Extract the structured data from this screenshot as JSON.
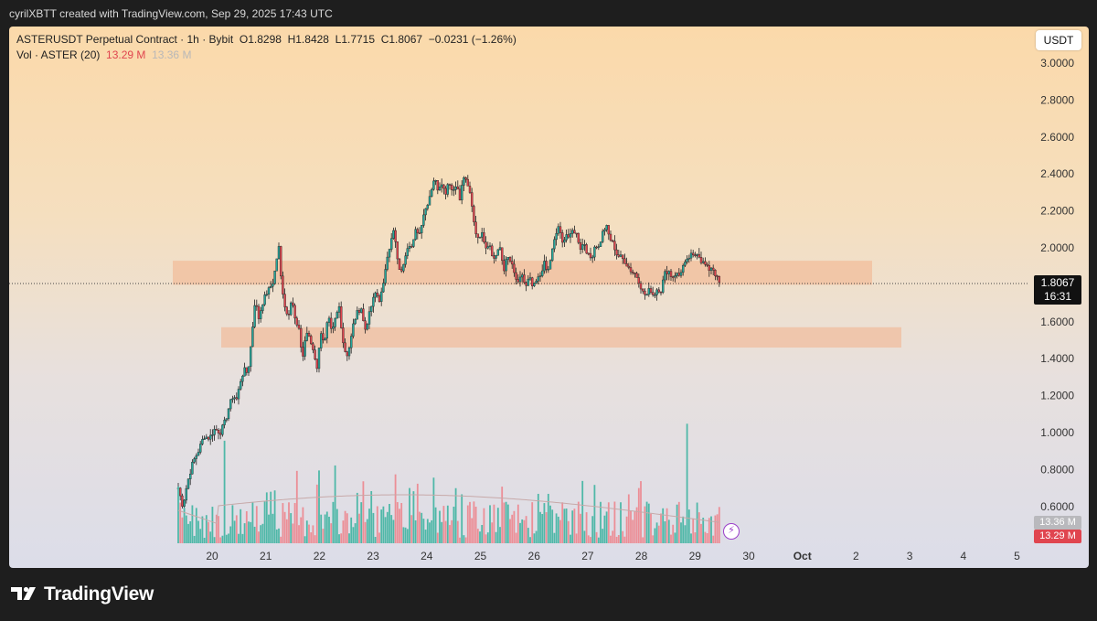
{
  "header": {
    "credit": "cyrilXBTT created with TradingView.com, Sep 29, 2025 17:43 UTC"
  },
  "legend": {
    "symbol": "ASTERUSDT Perpetual Contract · 1h · Bybit",
    "open": "O1.8298",
    "high": "H1.8428",
    "low": "L1.7715",
    "close": "C1.8067",
    "change": "−0.0231 (−1.26%)",
    "volume_label": "Vol · ASTER (20)",
    "volume_current": "13.29 M",
    "volume_ma": "13.36 M"
  },
  "currency_button": "USDT",
  "last_price": {
    "price": "1.8067",
    "countdown": "16:31"
  },
  "volume_tags": {
    "ma": "13.36 M",
    "current": "13.29 M"
  },
  "footer": {
    "brand": "TradingView"
  },
  "colors": {
    "up": "#26a69a",
    "down": "#e0454f",
    "zone": "#f3b08b",
    "vol_up": "#4fb8a8",
    "vol_down": "#ec8e96"
  },
  "chart_data": {
    "type": "candlestick",
    "y_axis": {
      "min": 0.5,
      "max": 3.1,
      "ticks": [
        "3.0000",
        "2.8000",
        "2.6000",
        "2.4000",
        "2.2000",
        "2.0000",
        "1.6000",
        "1.4000",
        "1.2000",
        "1.0000",
        "0.8000",
        "0.6000"
      ]
    },
    "x_axis": {
      "labels": [
        "20",
        "21",
        "22",
        "23",
        "24",
        "25",
        "26",
        "27",
        "28",
        "29",
        "30",
        "Oct",
        "2",
        "3",
        "4",
        "5"
      ],
      "bold": [
        "Oct"
      ]
    },
    "zones": [
      {
        "from_label": "20.9",
        "to_label": "3.3",
        "low": 1.8,
        "high": 1.93
      },
      {
        "from_label": "21.8",
        "to_label": "3.8",
        "low": 1.46,
        "high": 1.57
      }
    ],
    "price_path": [
      [
        0,
        0.7
      ],
      [
        5,
        0.6
      ],
      [
        10,
        0.73
      ],
      [
        16,
        0.84
      ],
      [
        22,
        0.9
      ],
      [
        28,
        0.98
      ],
      [
        34,
        0.97
      ],
      [
        40,
        1.02
      ],
      [
        46,
        1.0
      ],
      [
        52,
        1.07
      ],
      [
        56,
        1.15
      ],
      [
        60,
        1.2
      ],
      [
        64,
        1.18
      ],
      [
        68,
        1.28
      ],
      [
        72,
        1.34
      ],
      [
        76,
        1.32
      ],
      [
        80,
        1.5
      ],
      [
        84,
        1.72
      ],
      [
        88,
        1.62
      ],
      [
        92,
        1.7
      ],
      [
        96,
        1.75
      ],
      [
        100,
        1.78
      ],
      [
        104,
        1.82
      ],
      [
        108,
        1.95
      ],
      [
        110,
        2.0
      ],
      [
        112,
        1.85
      ],
      [
        116,
        1.7
      ],
      [
        120,
        1.62
      ],
      [
        124,
        1.74
      ],
      [
        128,
        1.6
      ],
      [
        132,
        1.55
      ],
      [
        136,
        1.4
      ],
      [
        140,
        1.55
      ],
      [
        144,
        1.5
      ],
      [
        148,
        1.44
      ],
      [
        152,
        1.35
      ],
      [
        156,
        1.55
      ],
      [
        160,
        1.48
      ],
      [
        164,
        1.63
      ],
      [
        168,
        1.53
      ],
      [
        172,
        1.62
      ],
      [
        176,
        1.68
      ],
      [
        180,
        1.5
      ],
      [
        184,
        1.41
      ],
      [
        188,
        1.48
      ],
      [
        192,
        1.6
      ],
      [
        196,
        1.65
      ],
      [
        200,
        1.68
      ],
      [
        204,
        1.55
      ],
      [
        208,
        1.62
      ],
      [
        212,
        1.7
      ],
      [
        216,
        1.76
      ],
      [
        220,
        1.72
      ],
      [
        224,
        1.78
      ],
      [
        228,
        1.95
      ],
      [
        232,
        2.02
      ],
      [
        236,
        2.1
      ],
      [
        240,
        1.92
      ],
      [
        244,
        1.86
      ],
      [
        248,
        1.96
      ],
      [
        252,
        2.03
      ],
      [
        256,
        2.0
      ],
      [
        260,
        2.1
      ],
      [
        264,
        2.08
      ],
      [
        268,
        2.18
      ],
      [
        272,
        2.23
      ],
      [
        276,
        2.3
      ],
      [
        280,
        2.38
      ],
      [
        284,
        2.32
      ],
      [
        288,
        2.36
      ],
      [
        292,
        2.29
      ],
      [
        296,
        2.37
      ],
      [
        300,
        2.3
      ],
      [
        304,
        2.35
      ],
      [
        308,
        2.26
      ],
      [
        312,
        2.39
      ],
      [
        316,
        2.34
      ],
      [
        320,
        2.28
      ],
      [
        324,
        2.12
      ],
      [
        328,
        2.04
      ],
      [
        332,
        2.1
      ],
      [
        336,
        2.0
      ],
      [
        340,
        2.03
      ],
      [
        344,
        1.94
      ],
      [
        348,
        1.96
      ],
      [
        352,
        2.0
      ],
      [
        356,
        1.88
      ],
      [
        360,
        1.95
      ],
      [
        364,
        1.92
      ],
      [
        368,
        1.85
      ],
      [
        372,
        1.8
      ],
      [
        376,
        1.86
      ],
      [
        380,
        1.78
      ],
      [
        384,
        1.84
      ],
      [
        388,
        1.78
      ],
      [
        392,
        1.82
      ],
      [
        396,
        1.85
      ],
      [
        400,
        1.92
      ],
      [
        404,
        1.86
      ],
      [
        408,
        1.96
      ],
      [
        412,
        2.05
      ],
      [
        416,
        2.12
      ],
      [
        420,
        2.02
      ],
      [
        424,
        2.08
      ],
      [
        428,
        2.05
      ],
      [
        432,
        2.1
      ],
      [
        436,
        2.07
      ],
      [
        440,
        2.0
      ],
      [
        444,
        2.03
      ],
      [
        448,
        1.96
      ],
      [
        452,
        1.94
      ],
      [
        456,
        2.02
      ],
      [
        460,
        2.0
      ],
      [
        464,
        2.08
      ],
      [
        468,
        2.12
      ],
      [
        472,
        2.05
      ],
      [
        476,
        2.02
      ],
      [
        480,
        1.96
      ],
      [
        484,
        1.95
      ],
      [
        488,
        1.93
      ],
      [
        492,
        1.9
      ],
      [
        496,
        1.87
      ],
      [
        500,
        1.86
      ],
      [
        504,
        1.82
      ],
      [
        508,
        1.76
      ],
      [
        512,
        1.74
      ],
      [
        516,
        1.78
      ],
      [
        520,
        1.74
      ],
      [
        524,
        1.78
      ],
      [
        528,
        1.77
      ],
      [
        532,
        1.86
      ],
      [
        536,
        1.88
      ],
      [
        540,
        1.84
      ],
      [
        544,
        1.86
      ],
      [
        548,
        1.85
      ],
      [
        552,
        1.9
      ],
      [
        556,
        1.92
      ],
      [
        560,
        1.96
      ],
      [
        564,
        1.95
      ],
      [
        568,
        1.98
      ],
      [
        572,
        1.93
      ],
      [
        576,
        1.91
      ],
      [
        580,
        1.88
      ],
      [
        584,
        1.9
      ],
      [
        588,
        1.85
      ],
      [
        592,
        1.8067
      ]
    ],
    "volume": {
      "unit": "M",
      "ma_current": 13.36,
      "last": 13.29
    }
  }
}
